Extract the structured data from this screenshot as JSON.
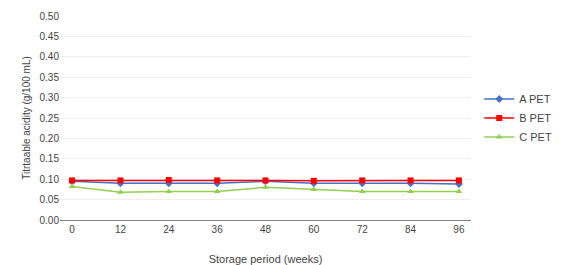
{
  "chart_data": {
    "type": "line",
    "x": [
      0,
      12,
      24,
      36,
      48,
      60,
      72,
      84,
      96
    ],
    "xlabel": "Storage period (weeks)",
    "ylabel": "Titrtaable acidity (g/100 mL)",
    "xlim": [
      -3,
      99
    ],
    "ylim": [
      0.0,
      0.5
    ],
    "xticks": [
      0,
      12,
      24,
      36,
      48,
      60,
      72,
      84,
      96
    ],
    "yticks": [
      {
        "value": 0.0,
        "label": "0.00"
      },
      {
        "value": 0.05,
        "label": "0.05"
      },
      {
        "value": 0.1,
        "label": "0.10"
      },
      {
        "value": 0.15,
        "label": "0.15"
      },
      {
        "value": 0.2,
        "label": "0.20"
      },
      {
        "value": 0.25,
        "label": "0.25"
      },
      {
        "value": 0.3,
        "label": "0.30"
      },
      {
        "value": 0.35,
        "label": "0.35"
      },
      {
        "value": 0.4,
        "label": "0.40"
      },
      {
        "value": 0.45,
        "label": "0.45"
      },
      {
        "value": 0.5,
        "label": "0.50"
      }
    ],
    "series": [
      {
        "name": "A PET",
        "color": "#4472C4",
        "marker": "diamond",
        "values": [
          0.095,
          0.09,
          0.09,
          0.09,
          0.095,
          0.09,
          0.09,
          0.09,
          0.088
        ]
      },
      {
        "name": "B PET",
        "color": "#FF0000",
        "marker": "square",
        "values": [
          0.097,
          0.097,
          0.098,
          0.097,
          0.097,
          0.096,
          0.097,
          0.097,
          0.097
        ]
      },
      {
        "name": "C PET",
        "color": "#92D050",
        "marker": "triangle",
        "values": [
          0.082,
          0.068,
          0.07,
          0.07,
          0.08,
          0.075,
          0.07,
          0.07,
          0.07
        ]
      }
    ],
    "grid": true,
    "legend": "right"
  }
}
